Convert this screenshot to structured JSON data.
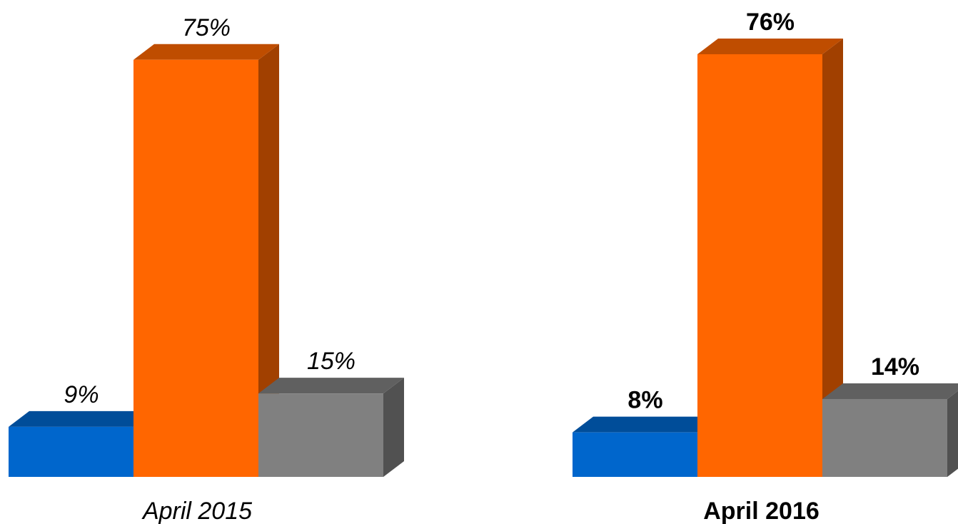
{
  "chart_data": [
    {
      "type": "bar",
      "xlabel": "April 2015",
      "font_style": "italic",
      "values": [
        9,
        75,
        15
      ],
      "value_labels": [
        "9%",
        "75%",
        "15%"
      ],
      "colors": [
        "#0066cc",
        "#ff6600",
        "#808080"
      ]
    },
    {
      "type": "bar",
      "xlabel": "April 2016",
      "font_style": "bold",
      "values": [
        8,
        76,
        14
      ],
      "value_labels": [
        "8%",
        "76%",
        "14%"
      ],
      "colors": [
        "#0066cc",
        "#ff6600",
        "#808080"
      ]
    }
  ]
}
